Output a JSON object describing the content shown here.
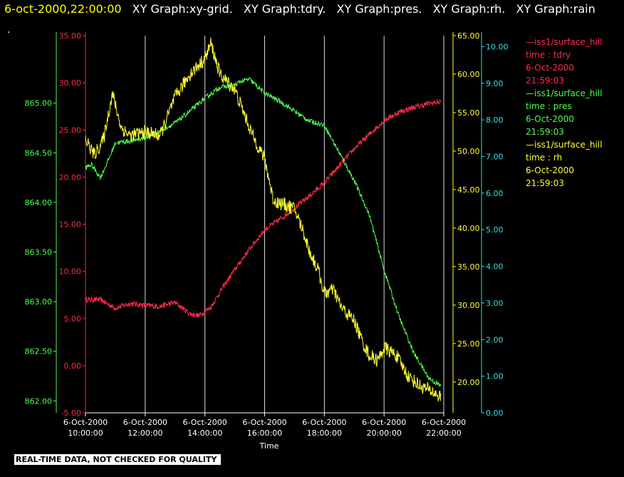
{
  "header": {
    "time": "6-oct-2000,22:00:00",
    "items": [
      "XY Graph:xy-grid.",
      "XY Graph:tdry.",
      "XY Graph:pres.",
      "XY Graph:rh.",
      "XY Graph:rain"
    ],
    "dot": "."
  },
  "legend": [
    {
      "line": "—iss1/surface_hill",
      "field": "time : tdry",
      "date": "6-Oct-2000",
      "time": "21:59:03",
      "color": "#ff2a4a"
    },
    {
      "line": "—iss1/surface_hill",
      "field": "time : pres",
      "date": "6-Oct-2000",
      "time": "21:59:03",
      "color": "#4dff4d"
    },
    {
      "line": "—iss1/surface_hill",
      "field": "time : rh",
      "date": "6-Oct-2000",
      "time": "21:59:03",
      "color": "#ffff33"
    }
  ],
  "disclaimer": "REAL-TIME DATA, NOT CHECKED FOR QUALITY",
  "chart_data": {
    "type": "line",
    "xlabel": "Time",
    "x_range": [
      "6-Oct-2000 10:00:00",
      "6-Oct-2000 22:00:00"
    ],
    "x_ticks": [
      {
        "date": "6-Oct-2000",
        "time": "10:00:00",
        "hour": 10
      },
      {
        "date": "6-Oct-2000",
        "time": "12:00:00",
        "hour": 12
      },
      {
        "date": "6-Oct-2000",
        "time": "14:00:00",
        "hour": 14
      },
      {
        "date": "6-Oct-2000",
        "time": "16:00:00",
        "hour": 16
      },
      {
        "date": "6-Oct-2000",
        "time": "18:00:00",
        "hour": 18
      },
      {
        "date": "6-Oct-2000",
        "time": "20:00:00",
        "hour": 20
      },
      {
        "date": "6-Oct-2000",
        "time": "22:00:00",
        "hour": 22
      }
    ],
    "grid": "vertical lines at x ticks",
    "axes": [
      {
        "id": "pres",
        "side": "left-outer",
        "color": "#4dff4d",
        "range": [
          861.88,
          865.68
        ],
        "ticks": [
          "862.00",
          "862.50",
          "863.00",
          "863.50",
          "864.00",
          "864.50",
          "865.00"
        ]
      },
      {
        "id": "tdry",
        "side": "left-inner",
        "color": "#ff2a4a",
        "range": [
          -5,
          35
        ],
        "ticks": [
          "-5.00",
          "0.00",
          "5.00",
          "10.00",
          "15.00",
          "20.00",
          "25.00",
          "30.00",
          "35.00"
        ]
      },
      {
        "id": "rh",
        "side": "right-inner",
        "color": "#ffff33",
        "range": [
          16,
          65
        ],
        "ticks": [
          "20.00",
          "25.00",
          "30.00",
          "35.00",
          "40.00",
          "45.00",
          "50.00",
          "55.00",
          "60.00",
          "65.00"
        ]
      },
      {
        "id": "rain",
        "side": "right-outer",
        "color": "#33e0e0",
        "range": [
          0,
          10.3
        ],
        "ticks": [
          "0.00",
          "1.00",
          "2.00",
          "3.00",
          "4.00",
          "5.00",
          "6.00",
          "7.00",
          "8.00",
          "9.00",
          "10.00"
        ]
      }
    ],
    "series": [
      {
        "name": "tdry",
        "axis": "tdry",
        "color": "#ff2a4a",
        "hours": [
          10.0,
          10.5,
          11.0,
          11.5,
          12.0,
          12.5,
          13.0,
          13.5,
          13.8,
          14.2,
          14.6,
          15.0,
          15.5,
          16.0,
          16.5,
          17.0,
          17.5,
          18.0,
          18.5,
          19.0,
          19.5,
          20.0,
          20.5,
          21.0,
          21.5,
          21.9
        ],
        "values": [
          7.0,
          7.0,
          6.1,
          6.6,
          6.4,
          6.3,
          6.7,
          5.5,
          5.3,
          6.2,
          8.3,
          10.2,
          12.4,
          14.4,
          15.5,
          16.7,
          18.0,
          19.4,
          21.2,
          23.0,
          24.5,
          26.0,
          26.9,
          27.4,
          27.8,
          28.0
        ],
        "jitter": 0.3
      },
      {
        "name": "pres",
        "axis": "pres",
        "color": "#4dff4d",
        "hours": [
          10.0,
          10.2,
          10.5,
          10.8,
          11.0,
          11.5,
          12.0,
          12.5,
          13.0,
          13.5,
          14.0,
          14.5,
          15.0,
          15.2,
          15.5,
          16.0,
          16.5,
          17.0,
          17.5,
          18.0,
          18.5,
          19.0,
          19.5,
          20.0,
          20.5,
          21.0,
          21.5,
          21.9
        ],
        "values": [
          864.35,
          864.38,
          864.25,
          864.45,
          864.6,
          864.62,
          864.65,
          864.72,
          864.8,
          864.92,
          865.05,
          865.16,
          865.18,
          865.22,
          865.24,
          865.1,
          865.02,
          864.92,
          864.82,
          864.78,
          864.5,
          864.22,
          863.88,
          863.32,
          862.85,
          862.48,
          862.23,
          862.15
        ],
        "jitter": 0.025
      },
      {
        "name": "rh",
        "axis": "rh",
        "color": "#ffff33",
        "hours": [
          10.0,
          10.3,
          10.6,
          10.9,
          11.2,
          11.5,
          12.0,
          12.5,
          13.0,
          13.5,
          14.0,
          14.2,
          14.5,
          15.0,
          15.3,
          15.6,
          16.0,
          16.3,
          16.7,
          17.0,
          17.3,
          17.5,
          17.8,
          18.0,
          18.3,
          18.6,
          19.0,
          19.3,
          19.5,
          19.8,
          20.0,
          20.4,
          20.8,
          21.2,
          21.6,
          21.9
        ],
        "values": [
          51.5,
          49.5,
          51.5,
          57.5,
          53.0,
          52.0,
          52.5,
          52.0,
          57.0,
          60.0,
          62.0,
          64.0,
          60.0,
          58.0,
          55.0,
          52.0,
          49.0,
          43.5,
          43.0,
          42.5,
          39.5,
          37.0,
          34.5,
          31.5,
          32.0,
          29.5,
          28.0,
          25.0,
          23.5,
          22.8,
          24.5,
          23.5,
          20.8,
          19.5,
          18.8,
          18.0
        ],
        "jitter": 0.9
      }
    ]
  }
}
